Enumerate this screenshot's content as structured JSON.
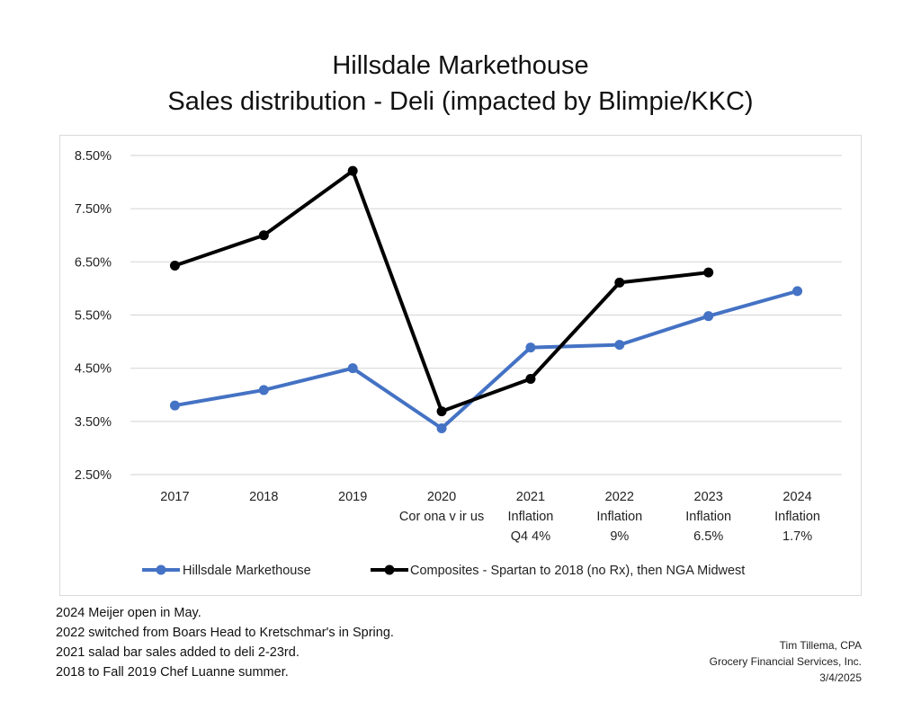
{
  "chart_data": {
    "type": "line",
    "title": "Hillsdale Markethouse",
    "subtitle": "Sales distribution - Deli (impacted by Blimpie/KKC)",
    "xlabel": "",
    "ylabel": "",
    "categories": [
      [
        "2017"
      ],
      [
        "2018"
      ],
      [
        "2019"
      ],
      [
        "2020",
        "Cor ona v ir us"
      ],
      [
        "2021",
        "Inflation",
        "Q4 4%"
      ],
      [
        "2022",
        "Inflation",
        "9%"
      ],
      [
        "2023",
        "Inflation",
        "6.5%"
      ],
      [
        "2024",
        "Inflation",
        "1.7%"
      ]
    ],
    "ylim": [
      2.5,
      8.5
    ],
    "yticks": [
      "8.50%",
      "7.50%",
      "6.50%",
      "5.50%",
      "4.50%",
      "3.50%",
      "2.50%"
    ],
    "ytick_values": [
      8.5,
      7.5,
      6.5,
      5.5,
      4.5,
      3.5,
      2.5
    ],
    "grid": true,
    "legend_position": "bottom",
    "series": [
      {
        "name": "Hillsdale Markethouse",
        "color": "#4472c4",
        "values": [
          3.8,
          4.09,
          4.5,
          3.37,
          4.89,
          4.94,
          5.48,
          5.95
        ]
      },
      {
        "name": "Composites - Spartan to 2018 (no Rx), then NGA Midwest",
        "color": "#000000",
        "values": [
          6.43,
          7.0,
          8.21,
          3.69,
          4.3,
          6.11,
          6.3,
          null
        ]
      }
    ]
  },
  "notes": [
    " 2024 Meijer open in May.",
    "2022 switched from Boars Head to Kretschmar's in Spring.",
    "2021 salad bar sales added to deli 2-23rd.",
    "2018 to Fall 2019 Chef Luanne summer."
  ],
  "signature": {
    "name": "Tim Tillema, CPA",
    "company": "Grocery Financial Services, Inc.",
    "date": "3/4/2025"
  }
}
